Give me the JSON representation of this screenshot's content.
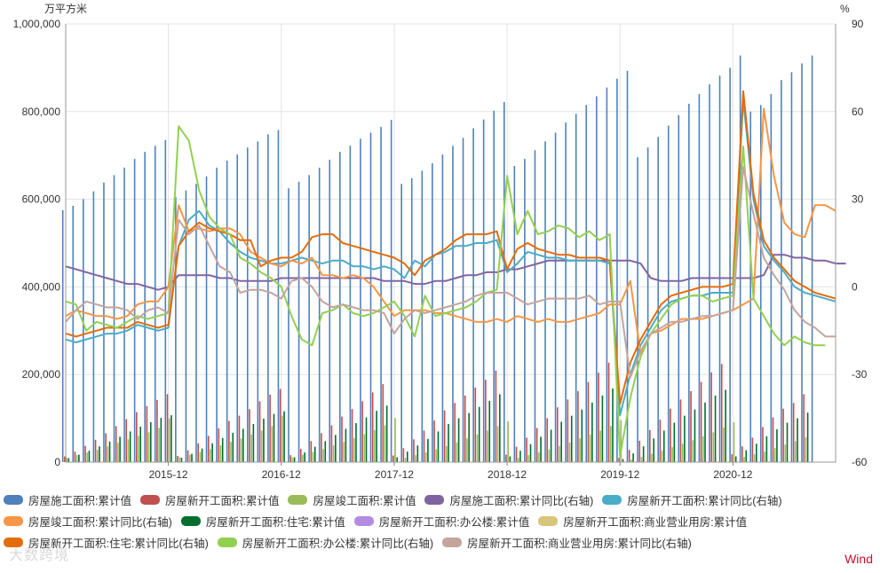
{
  "chart_data": {
    "type": "bar+line",
    "title": "",
    "left_axis": {
      "unit": "万平方米",
      "ylim": [
        0,
        1000000
      ],
      "ticks": [
        "0",
        "200,000",
        "400,000",
        "600,000",
        "800,000",
        "1,000,000"
      ]
    },
    "right_axis": {
      "unit": "%",
      "ylim": [
        -60,
        90
      ],
      "ticks": [
        "-60",
        "-30",
        "0",
        "30",
        "60",
        "90"
      ]
    },
    "x_ticks": [
      "2015-12",
      "2016-12",
      "2017-12",
      "2018-12",
      "2019-12",
      "2020-12"
    ],
    "grid": true,
    "legend_position": "bottom",
    "series": [
      {
        "name": "房屋施工面积:累计值",
        "axis": "left",
        "kind": "bar",
        "color": "#4f81bd",
        "values": [
          575000,
          585000,
          600000,
          618000,
          638000,
          655000,
          672000,
          692000,
          708000,
          722000,
          735000,
          605000,
          620000,
          635000,
          652000,
          672000,
          688000,
          702000,
          718000,
          732000,
          748000,
          758000,
          625000,
          640000,
          655000,
          672000,
          690000,
          708000,
          722000,
          738000,
          752000,
          765000,
          781000,
          635000,
          648000,
          665000,
          682000,
          702000,
          722000,
          740000,
          762000,
          782000,
          802000,
          822000,
          676000,
          692000,
          712000,
          732000,
          752000,
          775000,
          795000,
          815000,
          835000,
          855000,
          875000,
          893000,
          696000,
          718000,
          742000,
          768000,
          792000,
          818000,
          840000,
          862000,
          882000,
          900000,
          928000,
          800000,
          815000,
          840000,
          872000,
          890000,
          910000,
          928000
        ]
      },
      {
        "name": "房屋新开工面积:累计值",
        "axis": "left",
        "kind": "bar",
        "color": "#c0504d",
        "values": [
          13000,
          24000,
          37000,
          51000,
          66000,
          82000,
          98000,
          114000,
          128000,
          142000,
          155000,
          14000,
          27000,
          43000,
          60000,
          77000,
          94000,
          106000,
          121000,
          139000,
          154000,
          167000,
          16000,
          30000,
          48000,
          66000,
          84000,
          104000,
          121000,
          139000,
          159000,
          178000,
          15000,
          32000,
          52000,
          72000,
          95000,
          118000,
          135000,
          152000,
          170000,
          188000,
          209000,
          17000,
          35000,
          56000,
          78000,
          100000,
          125000,
          143000,
          162000,
          183000,
          204000,
          227000,
          10000,
          28000,
          49000,
          73000,
          97000,
          122000,
          143000,
          162000,
          183000,
          205000,
          224000,
          18000,
          36000,
          56000,
          80000,
          102000,
          122000,
          135000,
          155000
        ]
      },
      {
        "name": "房屋竣工面积:累计值",
        "axis": "left",
        "kind": "bar",
        "color": "#9bbb59",
        "values": [
          10000,
          16000,
          22000,
          28000,
          36000,
          44000,
          52000,
          60000,
          68000,
          78000,
          100000,
          11000,
          17000,
          23000,
          30000,
          38000,
          46000,
          54000,
          63000,
          72000,
          82000,
          106000,
          11000,
          17000,
          23000,
          30000,
          38000,
          46000,
          55000,
          64000,
          73000,
          84000,
          101000,
          10000,
          16000,
          22000,
          29000,
          37000,
          45000,
          54000,
          63000,
          72000,
          82000,
          93000,
          10000,
          16000,
          22000,
          29000,
          37000,
          45000,
          54000,
          63000,
          72000,
          82000,
          96000,
          6000,
          12000,
          19000,
          26000,
          34000,
          42000,
          50000,
          59000,
          68000,
          79000,
          91000,
          12000,
          18000,
          24000,
          32000,
          40000,
          48000,
          57000
        ]
      },
      {
        "name": "房屋新开工面积:住宅:累计值",
        "axis": "left",
        "kind": "bar",
        "color": "#006f2e",
        "values": [
          9000,
          17000,
          26000,
          36000,
          47000,
          58000,
          70000,
          81000,
          91000,
          101000,
          107000,
          10000,
          19000,
          31000,
          43000,
          55000,
          67000,
          76000,
          87000,
          99000,
          110000,
          116000,
          11000,
          22000,
          35000,
          48000,
          62000,
          76000,
          89000,
          102000,
          117000,
          129000,
          11000,
          24000,
          38000,
          53000,
          70000,
          87000,
          100000,
          112000,
          126000,
          140000,
          155000,
          13000,
          26000,
          41000,
          58000,
          74000,
          92000,
          106000,
          120000,
          136000,
          152000,
          168000,
          7000,
          20000,
          36000,
          54000,
          72000,
          90000,
          106000,
          120000,
          136000,
          152000,
          165000,
          13000,
          27000,
          42000,
          59000,
          75000,
          90000,
          100000,
          113000
        ]
      },
      {
        "name": "房屋新开工面积:办公楼:累计值",
        "axis": "left",
        "kind": "bar",
        "color": "#b08de0",
        "values": []
      },
      {
        "name": "房屋新开工面积:商业营业用房:累计值",
        "axis": "left",
        "kind": "bar",
        "color": "#d8c67a",
        "values": []
      },
      {
        "name": "房屋施工面积:累计同比(右轴)",
        "axis": "right",
        "kind": "line",
        "color": "#8064a2",
        "values": [
          7,
          6,
          5,
          4,
          3,
          2,
          1,
          1,
          0,
          -1,
          0,
          4,
          4,
          4,
          4,
          3,
          3,
          2,
          2,
          2,
          2,
          3,
          3,
          3,
          3,
          3,
          3,
          3,
          3,
          3,
          3,
          2,
          2,
          2,
          1,
          1,
          2,
          2,
          3,
          4,
          4,
          5,
          5,
          6,
          6,
          7,
          8,
          9,
          9,
          9,
          9,
          9,
          9,
          9,
          9,
          9,
          8,
          3,
          2,
          2,
          2,
          3,
          3,
          3,
          3,
          3,
          3,
          3,
          4,
          11,
          11,
          10,
          10,
          9,
          9,
          8,
          8
        ]
      },
      {
        "name": "房屋新开工面积:累计同比(右轴)",
        "axis": "right",
        "kind": "line",
        "color": "#4bacc6",
        "values": [
          -18,
          -19,
          -18,
          -17,
          -16,
          -16,
          -15,
          -13,
          -14,
          -15,
          -14,
          14,
          23,
          26,
          21,
          19,
          15,
          12,
          10,
          9,
          8,
          8,
          9,
          10,
          9,
          8,
          9,
          9,
          7,
          7,
          6,
          7,
          6,
          3,
          9,
          7,
          11,
          12,
          14,
          14,
          15,
          15,
          16,
          5,
          8,
          12,
          11,
          10,
          10,
          9,
          9,
          9,
          9,
          8,
          -44,
          -30,
          -20,
          -14,
          -8,
          -5,
          -4,
          -3,
          -3,
          -2,
          -2,
          -2,
          64,
          30,
          14,
          9,
          5,
          0,
          -2,
          -3,
          -4,
          -5
        ]
      },
      {
        "name": "房屋竣工面积:累计同比(右轴)",
        "axis": "right",
        "kind": "line",
        "color": "#f79646",
        "values": [
          -10,
          -8,
          -9,
          -10,
          -10,
          -11,
          -10,
          -6,
          -5,
          -5,
          0,
          28,
          19,
          20,
          19,
          20,
          20,
          18,
          12,
          10,
          8,
          7,
          9,
          8,
          10,
          4,
          4,
          3,
          4,
          3,
          0,
          -5,
          -10,
          -8,
          -8,
          -8,
          -9,
          -9,
          -10,
          -11,
          -12,
          -12,
          -11,
          -12,
          -10,
          -11,
          -12,
          -11,
          -12,
          -12,
          -11,
          -10,
          -9,
          -6,
          -6,
          2,
          -23,
          -16,
          -15,
          -13,
          -11,
          -11,
          -11,
          -10,
          -9,
          -8,
          -6,
          -4,
          61,
          38,
          22,
          18,
          17,
          28,
          28,
          26
        ]
      },
      {
        "name": "房屋新开工面积:住宅:累计同比(右轴)",
        "axis": "right",
        "kind": "line",
        "color": "#e46c0a",
        "values": [
          -16,
          -17,
          -16,
          -15,
          -14,
          -14,
          -14,
          -12,
          -13,
          -14,
          -13,
          14,
          19,
          22,
          20,
          19,
          18,
          16,
          16,
          7,
          9,
          10,
          10,
          12,
          17,
          18,
          18,
          15,
          14,
          13,
          12,
          11,
          10,
          8,
          4,
          9,
          11,
          13,
          16,
          18,
          18,
          18,
          19,
          6,
          13,
          15,
          13,
          12,
          11,
          11,
          10,
          10,
          10,
          9,
          -40,
          -26,
          -18,
          -12,
          -6,
          -3,
          -2,
          -1,
          0,
          0,
          0,
          1,
          67,
          32,
          16,
          10,
          6,
          2,
          0,
          -2,
          -3,
          -4
        ]
      },
      {
        "name": "房屋新开工面积:办公楼:累计同比(右轴)",
        "axis": "right",
        "kind": "line",
        "color": "#92d050",
        "values": [
          -5,
          -6,
          -15,
          -12,
          -13,
          -14,
          -12,
          -10,
          -11,
          -10,
          -9,
          55,
          50,
          33,
          24,
          20,
          18,
          10,
          8,
          5,
          3,
          0,
          -10,
          -18,
          -20,
          -9,
          -8,
          -6,
          -9,
          -10,
          -9,
          -7,
          -5,
          -10,
          -17,
          -3,
          -10,
          -9,
          -8,
          -7,
          -5,
          -2,
          -1,
          38,
          18,
          26,
          18,
          19,
          21,
          20,
          17,
          19,
          16,
          18,
          -58,
          -38,
          -24,
          -16,
          -11,
          -6,
          -4,
          -3,
          -3,
          -5,
          -4,
          -3,
          48,
          -4,
          -10,
          -16,
          -20,
          -17,
          -19,
          -20,
          -20
        ]
      },
      {
        "name": "房屋新开工面积:商业营业用房:累计同比(右轴)",
        "axis": "right",
        "kind": "line",
        "color": "#c4a49c",
        "values": [
          -12,
          -8,
          -5,
          -6,
          -7,
          -7,
          -8,
          -11,
          -8,
          -7,
          -9,
          23,
          18,
          21,
          14,
          7,
          5,
          -2,
          -1,
          -1,
          -2,
          -4,
          2,
          3,
          0,
          -5,
          -7,
          -6,
          -7,
          -8,
          -8,
          -9,
          -16,
          -11,
          -8,
          -9,
          -8,
          -7,
          -6,
          -5,
          -3,
          -2,
          -2,
          -2,
          -4,
          -6,
          -5,
          -4,
          -4,
          -4,
          -4,
          -3,
          -6,
          -5,
          -5,
          -31,
          -22,
          -16,
          -14,
          -12,
          -12,
          -11,
          -10,
          -10,
          -9,
          -8,
          41,
          25,
          10,
          4,
          -1,
          -8,
          -12,
          -14,
          -17,
          -17
        ]
      }
    ]
  },
  "legend": {
    "row1": [
      "房屋施工面积:累计值",
      "房屋新开工面积:累计值",
      "房屋竣工面积:累计值",
      "房屋施工面积:累计同比(右轴)",
      "房屋新开工面积:累计同比(右轴)"
    ],
    "row2": [
      "房屋竣工面积:累计同比(右轴)",
      "房屋新开工面积:住宅:累计值",
      "房屋新开工面积:办公楼:累计值",
      "房屋新开工面积:商业营业用房:累计值"
    ],
    "row3": [
      "房屋新开工面积:住宅:累计同比(右轴)",
      "房屋新开工面积:办公楼:累计同比(右轴)",
      "房屋新开工面积:商业营业用房:累计同比(右轴)"
    ]
  },
  "brand": "Wind",
  "watermark": "大数跨境"
}
